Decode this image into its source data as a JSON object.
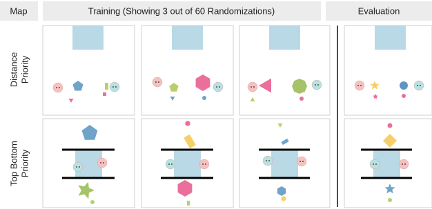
{
  "header": {
    "map": "Map",
    "training": "Training (Showing 3 out of 60 Randomizations)",
    "evaluation": "Evaluation"
  },
  "rows": [
    {
      "label_lines": [
        "Distance",
        "Priority"
      ]
    },
    {
      "label_lines": [
        "Top Bottom",
        "Priority"
      ]
    }
  ]
}
